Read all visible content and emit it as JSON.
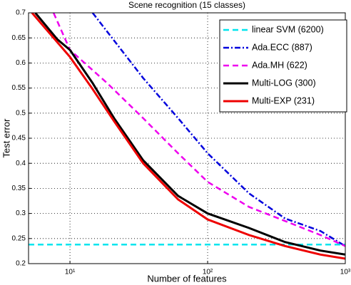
{
  "chart_data": {
    "type": "line",
    "title": "Scene recognition (15 classes)",
    "x_label": "Number of features",
    "y_label": "Test error",
    "xscale": "log",
    "xlim": [
      5,
      1000
    ],
    "xticks": [
      {
        "value": 10,
        "label": "10¹"
      },
      {
        "value": 100,
        "label": "10²"
      },
      {
        "value": 1000,
        "label": "10³"
      }
    ],
    "ylim": [
      0.2,
      0.7
    ],
    "yticks": [
      0.2,
      0.25,
      0.3,
      0.35,
      0.4,
      0.45,
      0.5,
      0.55,
      0.6,
      0.65,
      0.7
    ],
    "grid": true,
    "legend": "upper right",
    "series": [
      {
        "name": "linear SVM (6200)",
        "color": "#00e5ee",
        "dash": "dashed",
        "x": [
          5,
          1000
        ],
        "values": [
          0.238,
          0.238
        ]
      },
      {
        "name": "Ada.ECC (887)",
        "color": "#0000dd",
        "dash": "dashdot",
        "x": [
          14.6,
          34,
          61,
          100,
          200,
          365,
          660,
          1000
        ],
        "values": [
          0.7,
          0.57,
          0.49,
          0.42,
          0.34,
          0.29,
          0.265,
          0.235
        ]
      },
      {
        "name": "Ada.MH (622)",
        "color": "#ee00ee",
        "dash": "dashed",
        "x": [
          7.6,
          10,
          18.6,
          34,
          61,
          100,
          200,
          365,
          660,
          1000
        ],
        "values": [
          0.7,
          0.626,
          0.56,
          0.49,
          0.42,
          0.363,
          0.313,
          0.285,
          0.257,
          0.235
        ]
      },
      {
        "name": "Multi-LOG (300)",
        "color": "#000000",
        "dash": "solid",
        "x": [
          5.6,
          8.1,
          10,
          14.6,
          20.9,
          34,
          61,
          100,
          200,
          365,
          660,
          1000
        ],
        "values": [
          0.7,
          0.647,
          0.626,
          0.56,
          0.49,
          0.406,
          0.335,
          0.3,
          0.271,
          0.243,
          0.226,
          0.218
        ]
      },
      {
        "name": "Multi-EXP (231)",
        "color": "#ee0000",
        "dash": "solid",
        "x": [
          5.3,
          10,
          14.6,
          20.9,
          34,
          61,
          100,
          200,
          365,
          660,
          1000
        ],
        "values": [
          0.7,
          0.612,
          0.548,
          0.484,
          0.4,
          0.328,
          0.288,
          0.257,
          0.235,
          0.218,
          0.21
        ]
      }
    ]
  }
}
